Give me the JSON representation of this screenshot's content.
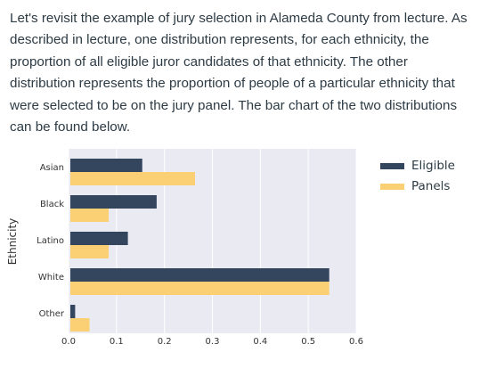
{
  "intro_text": "Let's revisit the example of jury selection in Alameda County from lecture. As described in lecture, one distribution represents, for each ethnicity, the proportion of all eligible juror candidates of that ethnicity. The other distribution represents the proportion of people of a particular ethnicity that were selected to be on the jury panel. The bar chart of the two distributions can be found below.",
  "colors": {
    "plot_bg": "#eaeaf2",
    "grid": "#ffffff",
    "eligible": "#34455e",
    "panels": "#fbcf73",
    "text": "#2d3b45",
    "tick": "#333333"
  },
  "chart_data": {
    "type": "bar",
    "orientation": "horizontal",
    "categories": [
      "Asian",
      "Black",
      "Latino",
      "White",
      "Other"
    ],
    "series": [
      {
        "name": "Eligible",
        "values": [
          0.15,
          0.18,
          0.12,
          0.54,
          0.01
        ]
      },
      {
        "name": "Panels",
        "values": [
          0.26,
          0.08,
          0.08,
          0.54,
          0.04
        ]
      }
    ],
    "ylabel": "Ethnicity",
    "xlabel": "",
    "xlim": [
      0,
      0.6
    ],
    "xticks": [
      "0.0",
      "0.1",
      "0.2",
      "0.3",
      "0.4",
      "0.5",
      "0.6"
    ],
    "grid": true,
    "legend_position": "top-right"
  }
}
